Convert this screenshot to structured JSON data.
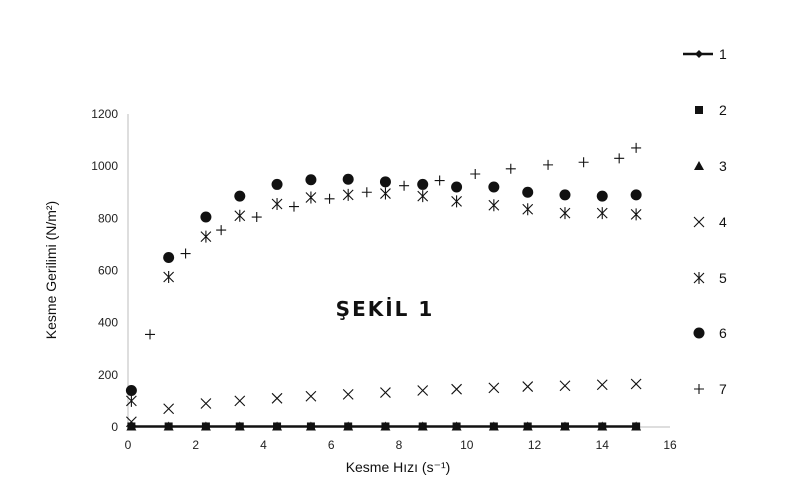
{
  "chart_data": {
    "type": "scatter",
    "title": "",
    "annotation": "ŞEKİL 1",
    "xlabel": "Kesme Hızı (s⁻¹)",
    "ylabel": "Kesme Gerilimi (N/m²)",
    "xlim": [
      0,
      16
    ],
    "ylim": [
      0,
      1200
    ],
    "xticks": [
      0,
      2,
      4,
      6,
      8,
      10,
      12,
      14,
      16
    ],
    "yticks": [
      0,
      200,
      400,
      600,
      800,
      1000,
      1200
    ],
    "grid": false,
    "legend_position": "right",
    "series": [
      {
        "name": "1",
        "marker": "line-diamond",
        "x": [
          0.1,
          1.2,
          2.3,
          3.3,
          4.4,
          5.4,
          6.5,
          7.6,
          8.7,
          9.7,
          10.8,
          11.8,
          12.9,
          14.0,
          15.0
        ],
        "y": [
          2,
          2,
          2,
          2,
          2,
          2,
          2,
          2,
          2,
          2,
          2,
          2,
          2,
          2,
          2
        ]
      },
      {
        "name": "2",
        "marker": "square",
        "x": [
          0.1,
          1.2,
          2.3,
          3.3,
          4.4,
          5.4,
          6.5,
          7.6,
          8.7,
          9.7,
          10.8,
          11.8,
          12.9,
          14.0,
          15.0
        ],
        "y": [
          2,
          2,
          2,
          2,
          2,
          2,
          2,
          2,
          2,
          2,
          2,
          2,
          2,
          2,
          2
        ]
      },
      {
        "name": "3",
        "marker": "triangle",
        "x": [
          0.1,
          1.2,
          2.3,
          3.3,
          4.4,
          5.4,
          6.5,
          7.6,
          8.7,
          9.7,
          10.8,
          11.8,
          12.9,
          14.0,
          15.0
        ],
        "y": [
          2,
          2,
          2,
          2,
          2,
          2,
          2,
          2,
          2,
          2,
          2,
          2,
          2,
          2,
          2
        ]
      },
      {
        "name": "4",
        "marker": "x",
        "x": [
          0.1,
          1.2,
          2.3,
          3.3,
          4.4,
          5.4,
          6.5,
          7.6,
          8.7,
          9.7,
          10.8,
          11.8,
          12.9,
          14.0,
          15.0
        ],
        "y": [
          20,
          70,
          90,
          100,
          110,
          118,
          125,
          132,
          140,
          145,
          150,
          155,
          158,
          162,
          165
        ]
      },
      {
        "name": "5",
        "marker": "asterisk",
        "x": [
          0.1,
          1.2,
          2.3,
          3.3,
          4.4,
          5.4,
          6.5,
          7.6,
          8.7,
          9.7,
          10.8,
          11.8,
          12.9,
          14.0,
          15.0
        ],
        "y": [
          100,
          575,
          730,
          810,
          855,
          880,
          890,
          895,
          885,
          865,
          850,
          835,
          820,
          820,
          815
        ]
      },
      {
        "name": "6",
        "marker": "circle",
        "x": [
          0.1,
          1.2,
          2.3,
          3.3,
          4.4,
          5.4,
          6.5,
          7.6,
          8.7,
          9.7,
          10.8,
          11.8,
          12.9,
          14.0,
          15.0
        ],
        "y": [
          140,
          650,
          805,
          885,
          930,
          948,
          950,
          940,
          930,
          920,
          920,
          900,
          890,
          885,
          890
        ]
      },
      {
        "name": "7",
        "marker": "plus",
        "x": [
          0.65,
          1.7,
          2.75,
          3.8,
          4.9,
          5.95,
          7.05,
          8.15,
          9.2,
          10.25,
          11.3,
          12.4,
          13.45,
          14.5,
          15.0
        ],
        "y": [
          355,
          665,
          755,
          805,
          845,
          875,
          900,
          925,
          945,
          970,
          990,
          1005,
          1015,
          1030,
          1070
        ]
      }
    ]
  }
}
